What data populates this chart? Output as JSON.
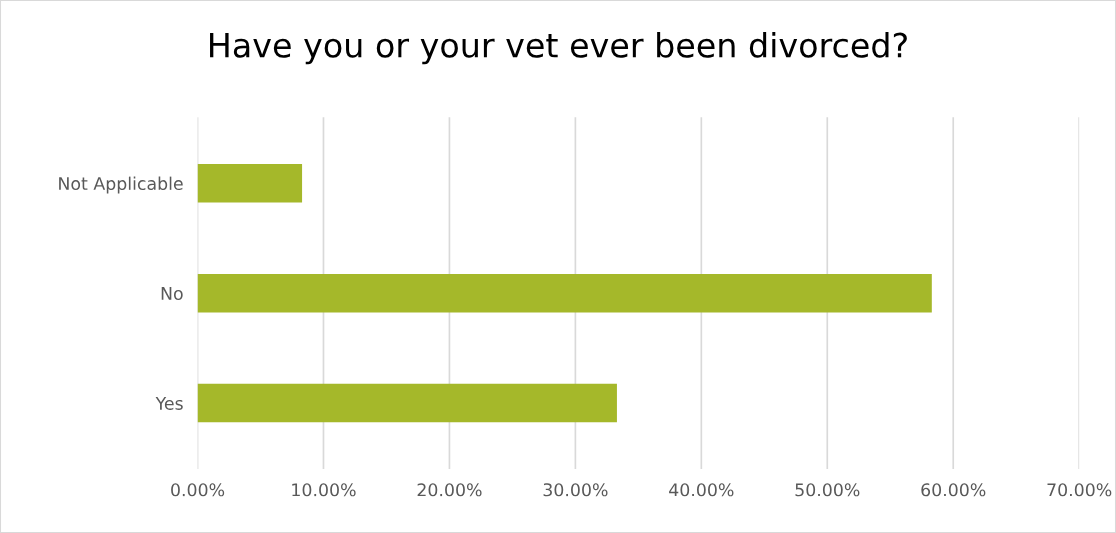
{
  "chart_data": {
    "type": "bar",
    "orientation": "horizontal",
    "title": "Have you or your vet ever been divorced?",
    "categories": [
      "Not Applicable",
      "No",
      "Yes"
    ],
    "values": [
      8.3,
      58.3,
      33.3
    ],
    "color": "#a5b82a",
    "xlim": [
      0,
      70
    ],
    "xticks": [
      {
        "value": 0,
        "label": "0.00%"
      },
      {
        "value": 10,
        "label": "10.00%"
      },
      {
        "value": 20,
        "label": "20.00%"
      },
      {
        "value": 30,
        "label": "30.00%"
      },
      {
        "value": 40,
        "label": "40.00%"
      },
      {
        "value": 50,
        "label": "50.00%"
      },
      {
        "value": 60,
        "label": "60.00%"
      },
      {
        "value": 70,
        "label": "70.00%"
      }
    ],
    "grid": "x",
    "legend": false
  }
}
